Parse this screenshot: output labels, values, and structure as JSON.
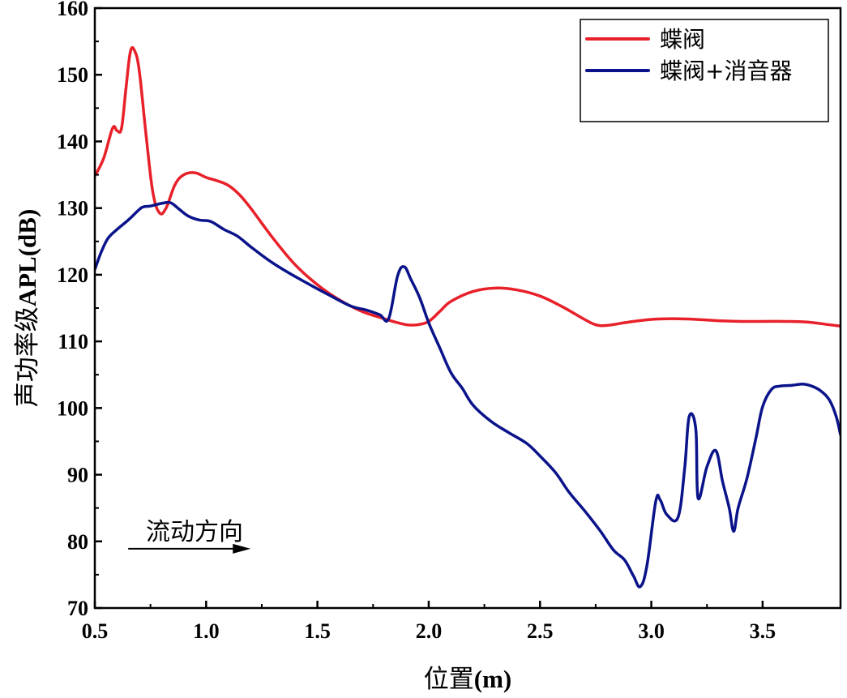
{
  "chart_data": {
    "type": "line",
    "xlabel": "位置(m)",
    "ylabel": "声功率级APL(dB)",
    "xlim": [
      0.5,
      3.85
    ],
    "ylim": [
      70,
      160
    ],
    "x_ticks": [
      0.5,
      1.0,
      1.5,
      2.0,
      2.5,
      3.0,
      3.5
    ],
    "x_tick_labels": [
      "0.5",
      "1.0",
      "1.5",
      "2.0",
      "2.5",
      "3.0",
      "3.5"
    ],
    "y_ticks": [
      70,
      80,
      90,
      100,
      110,
      120,
      130,
      140,
      150,
      160
    ],
    "y_tick_labels": [
      "70",
      "80",
      "90",
      "100",
      "110",
      "120",
      "130",
      "140",
      "150",
      "160"
    ],
    "legend_position": "top-right",
    "annotation": {
      "text": "流动方向",
      "arrow_from": [
        0.65,
        78.9
      ],
      "arrow_to": [
        1.2,
        78.9
      ]
    },
    "series": [
      {
        "name": "蝶阀",
        "color": "#e8202a",
        "points": [
          [
            0.5,
            134.8
          ],
          [
            0.54,
            137.5
          ],
          [
            0.58,
            142
          ],
          [
            0.6,
            141.6
          ],
          [
            0.62,
            142
          ],
          [
            0.64,
            148
          ],
          [
            0.66,
            153.5
          ],
          [
            0.68,
            153.5
          ],
          [
            0.7,
            150.5
          ],
          [
            0.73,
            141
          ],
          [
            0.76,
            132.5
          ],
          [
            0.79,
            129.3
          ],
          [
            0.82,
            130
          ],
          [
            0.86,
            133.5
          ],
          [
            0.9,
            135
          ],
          [
            0.95,
            135.3
          ],
          [
            1.0,
            134.6
          ],
          [
            1.05,
            134.1
          ],
          [
            1.1,
            133.4
          ],
          [
            1.15,
            132
          ],
          [
            1.2,
            130
          ],
          [
            1.3,
            125.5
          ],
          [
            1.4,
            121.5
          ],
          [
            1.5,
            118.5
          ],
          [
            1.6,
            116.2
          ],
          [
            1.7,
            114.5
          ],
          [
            1.8,
            113.4
          ],
          [
            1.85,
            112.9
          ],
          [
            1.9,
            112.5
          ],
          [
            1.95,
            112.5
          ],
          [
            2.0,
            113
          ],
          [
            2.05,
            114.5
          ],
          [
            2.1,
            116
          ],
          [
            2.2,
            117.5
          ],
          [
            2.3,
            118
          ],
          [
            2.4,
            117.7
          ],
          [
            2.5,
            116.8
          ],
          [
            2.6,
            115.2
          ],
          [
            2.7,
            113.3
          ],
          [
            2.75,
            112.5
          ],
          [
            2.8,
            112.4
          ],
          [
            2.9,
            112.9
          ],
          [
            3.0,
            113.3
          ],
          [
            3.1,
            113.4
          ],
          [
            3.2,
            113.3
          ],
          [
            3.3,
            113.1
          ],
          [
            3.4,
            113
          ],
          [
            3.5,
            113
          ],
          [
            3.6,
            113
          ],
          [
            3.7,
            112.9
          ],
          [
            3.8,
            112.5
          ],
          [
            3.85,
            112.3
          ]
        ]
      },
      {
        "name": "蝶阀+消音器",
        "color": "#0a138a",
        "points": [
          [
            0.5,
            120.8
          ],
          [
            0.53,
            123.5
          ],
          [
            0.56,
            125.5
          ],
          [
            0.6,
            126.8
          ],
          [
            0.65,
            128.2
          ],
          [
            0.7,
            129.8
          ],
          [
            0.72,
            130.2
          ],
          [
            0.75,
            130.3
          ],
          [
            0.8,
            130.7
          ],
          [
            0.84,
            130.8
          ],
          [
            0.88,
            129.8
          ],
          [
            0.92,
            128.8
          ],
          [
            0.97,
            128.2
          ],
          [
            1.02,
            128
          ],
          [
            1.08,
            126.8
          ],
          [
            1.14,
            125.8
          ],
          [
            1.2,
            124.2
          ],
          [
            1.28,
            122.2
          ],
          [
            1.36,
            120.5
          ],
          [
            1.45,
            118.8
          ],
          [
            1.55,
            117
          ],
          [
            1.65,
            115.3
          ],
          [
            1.72,
            114.7
          ],
          [
            1.78,
            114
          ],
          [
            1.82,
            113.4
          ],
          [
            1.86,
            119.8
          ],
          [
            1.89,
            121.2
          ],
          [
            1.92,
            119.3
          ],
          [
            1.96,
            116.5
          ],
          [
            2.0,
            112.8
          ],
          [
            2.05,
            109
          ],
          [
            2.1,
            105.3
          ],
          [
            2.15,
            103
          ],
          [
            2.2,
            100.4
          ],
          [
            2.28,
            98
          ],
          [
            2.36,
            96.3
          ],
          [
            2.44,
            94.7
          ],
          [
            2.5,
            92.8
          ],
          [
            2.57,
            90.3
          ],
          [
            2.63,
            87.4
          ],
          [
            2.7,
            84.6
          ],
          [
            2.77,
            81.6
          ],
          [
            2.83,
            78.7
          ],
          [
            2.88,
            77.2
          ],
          [
            2.92,
            74.8
          ],
          [
            2.95,
            73.2
          ],
          [
            2.98,
            76.3
          ],
          [
            3.02,
            86
          ],
          [
            3.04,
            86.2
          ],
          [
            3.07,
            84
          ],
          [
            3.12,
            83.6
          ],
          [
            3.15,
            91
          ],
          [
            3.17,
            98.7
          ],
          [
            3.2,
            96.8
          ],
          [
            3.21,
            86.5
          ],
          [
            3.25,
            91.2
          ],
          [
            3.29,
            93.6
          ],
          [
            3.32,
            89
          ],
          [
            3.35,
            85
          ],
          [
            3.37,
            81.5
          ],
          [
            3.39,
            85
          ],
          [
            3.43,
            89.5
          ],
          [
            3.47,
            95.5
          ],
          [
            3.5,
            100.2
          ],
          [
            3.54,
            102.8
          ],
          [
            3.58,
            103.3
          ],
          [
            3.63,
            103.4
          ],
          [
            3.68,
            103.6
          ],
          [
            3.72,
            103.3
          ],
          [
            3.76,
            102.6
          ],
          [
            3.8,
            101.2
          ],
          [
            3.83,
            98.8
          ],
          [
            3.85,
            96
          ]
        ]
      }
    ]
  }
}
